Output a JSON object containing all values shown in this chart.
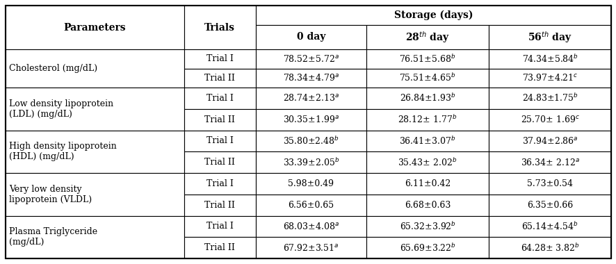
{
  "storage_header": "Storage (days)",
  "col0_header": "Parameters",
  "col1_header": "Trials",
  "col2_header": "0 day",
  "col3_header": "28$^{th}$ day",
  "col4_header": "56$^{th}$ day",
  "rows": [
    {
      "param": "Cholesterol (mg/dL)",
      "param_lines": 1,
      "trial": "Trial I",
      "v0": "78.52±5.72$^{a}$",
      "v28": "76.51±5.68$^{b}$",
      "v56": "74.34±5.84$^{b}$"
    },
    {
      "param": "",
      "param_lines": 1,
      "trial": "Trial II",
      "v0": "78.34±4.79$^{a}$",
      "v28": "75.51±4.65$^{b}$",
      "v56": "73.97±4.21$^{c}$"
    },
    {
      "param": "Low density lipoprotein\n(LDL) (mg/dL)",
      "param_lines": 2,
      "trial": "Trial I",
      "v0": "28.74±2.13$^{a}$",
      "v28": "26.84±1.93$^{b}$",
      "v56": "24.83±1.75$^{b}$"
    },
    {
      "param": "",
      "param_lines": 2,
      "trial": "Trial II",
      "v0": "30.35±1.99$^{a}$",
      "v28": "28.12± 1.77$^{b}$",
      "v56": "25.70± 1.69$^{c}$"
    },
    {
      "param": "High density lipoprotein\n(HDL) (mg/dL)",
      "param_lines": 2,
      "trial": "Trial I",
      "v0": "35.80±2.48$^{b}$",
      "v28": "36.41±3.07$^{b}$",
      "v56": "37.94±2.86$^{a}$"
    },
    {
      "param": "",
      "param_lines": 2,
      "trial": "Trial II",
      "v0": "33.39±2.05$^{b}$",
      "v28": "35.43± 2.02$^{b}$",
      "v56": "36.34± 2.12$^{a}$"
    },
    {
      "param": "Very low density\nlipoprotein (VLDL)",
      "param_lines": 2,
      "trial": "Trial I",
      "v0": "5.98±0.49",
      "v28": "6.11±0.42",
      "v56": "5.73±0.54"
    },
    {
      "param": "",
      "param_lines": 2,
      "trial": "Trial II",
      "v0": "6.56±0.65",
      "v28": "6.68±0.63",
      "v56": "6.35±0.66"
    },
    {
      "param": "Plasma Triglyceride\n(mg/dL)",
      "param_lines": 2,
      "trial": "Trial I",
      "v0": "68.03±4.08$^{a}$",
      "v28": "65.32±3.92$^{b}$",
      "v56": "65.14±4.54$^{b}$"
    },
    {
      "param": "",
      "param_lines": 2,
      "trial": "Trial II",
      "v0": "67.92±3.51$^{a}$",
      "v28": "65.69±3.22$^{b}$",
      "v56": "64.28± 3.82$^{b}$"
    }
  ],
  "bg_color": "#ffffff",
  "border_color": "#000000",
  "text_color": "#000000",
  "data_fontsize": 9.0,
  "header_fontsize": 10.0
}
